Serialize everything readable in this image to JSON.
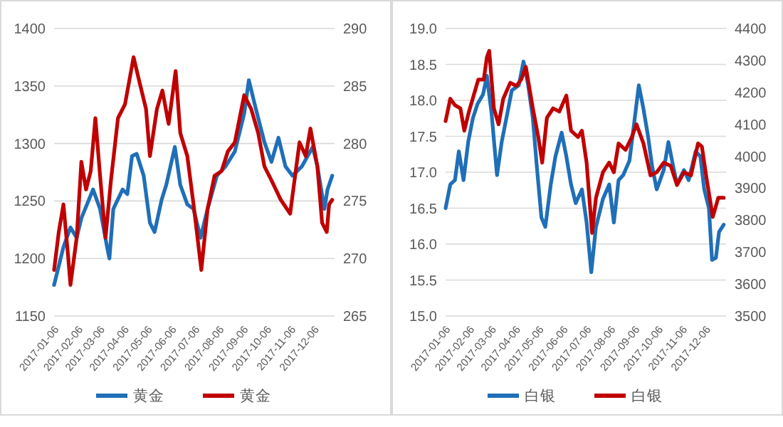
{
  "chart_data": [
    {
      "type": "line",
      "xlim": [
        "2017-01-03",
        "2017-12-29"
      ],
      "xticks": [
        "2017-01-06",
        "2017-02-06",
        "2017-03-06",
        "2017-04-06",
        "2017-05-06",
        "2017-06-06",
        "2017-07-06",
        "2017-08-06",
        "2017-09-06",
        "2017-10-06",
        "2017-11-06",
        "2017-12-06"
      ],
      "ylim": [
        1150,
        1400
      ],
      "yticks": [
        1150,
        1200,
        1250,
        1300,
        1350,
        1400
      ],
      "y2lim": [
        265,
        290
      ],
      "y2ticks": [
        265,
        270,
        275,
        280,
        285,
        290
      ],
      "grid": "y",
      "legend": "bottom",
      "series": [
        {
          "name": "黄金",
          "color": "#1f6fb8",
          "x": [
            "2017-01-03",
            "2017-01-15",
            "2017-01-24",
            "2017-02-01",
            "2017-02-07",
            "2017-02-22",
            "2017-03-03",
            "2017-03-12",
            "2017-03-15",
            "2017-03-20",
            "2017-04-01",
            "2017-04-07",
            "2017-04-13",
            "2017-04-19",
            "2017-04-28",
            "2017-05-06",
            "2017-05-12",
            "2017-05-21",
            "2017-05-27",
            "2017-06-07",
            "2017-06-14",
            "2017-06-23",
            "2017-07-01",
            "2017-07-10",
            "2017-07-19",
            "2017-07-31",
            "2017-08-11",
            "2017-08-23",
            "2017-09-04",
            "2017-09-10",
            "2017-09-19",
            "2017-09-30",
            "2017-10-09",
            "2017-10-18",
            "2017-10-27",
            "2017-11-05",
            "2017-11-17",
            "2017-12-01",
            "2017-12-07",
            "2017-12-16",
            "2017-12-20",
            "2017-12-26"
          ],
          "values": [
            1177,
            1210,
            1227,
            1218,
            1235,
            1260,
            1243,
            1210,
            1200,
            1243,
            1260,
            1256,
            1289,
            1291,
            1272,
            1231,
            1223,
            1251,
            1264,
            1297,
            1264,
            1247,
            1243,
            1218,
            1243,
            1272,
            1280,
            1293,
            1326,
            1355,
            1330,
            1301,
            1284,
            1305,
            1280,
            1272,
            1280,
            1297,
            1280,
            1243,
            1260,
            1272
          ]
        },
        {
          "name": "黄金",
          "color": "#c00000",
          "axis": "y2",
          "x": [
            "2017-01-03",
            "2017-01-09",
            "2017-01-15",
            "2017-01-21",
            "2017-01-24",
            "2017-02-01",
            "2017-02-07",
            "2017-02-13",
            "2017-02-19",
            "2017-02-25",
            "2017-03-03",
            "2017-03-10",
            "2017-03-17",
            "2017-03-26",
            "2017-04-04",
            "2017-04-15",
            "2017-04-22",
            "2017-05-01",
            "2017-05-06",
            "2017-05-15",
            "2017-05-22",
            "2017-05-30",
            "2017-06-08",
            "2017-06-14",
            "2017-06-23",
            "2017-07-01",
            "2017-07-11",
            "2017-07-19",
            "2017-07-28",
            "2017-08-06",
            "2017-08-14",
            "2017-08-23",
            "2017-09-04",
            "2017-09-13",
            "2017-09-22",
            "2017-09-30",
            "2017-10-09",
            "2017-10-21",
            "2017-11-02",
            "2017-11-14",
            "2017-11-22",
            "2017-11-28",
            "2017-12-07",
            "2017-12-13",
            "2017-12-19",
            "2017-12-22",
            "2017-12-26"
          ],
          "values": [
            269.0,
            272.3,
            274.7,
            270.2,
            267.7,
            271.8,
            278.4,
            276.0,
            277.6,
            282.2,
            277.2,
            271.8,
            276.8,
            282.2,
            283.4,
            287.5,
            285.5,
            283.0,
            278.9,
            283.0,
            284.6,
            281.7,
            286.3,
            280.9,
            278.9,
            274.7,
            269.0,
            274.3,
            277.2,
            277.6,
            279.3,
            280.1,
            284.2,
            283.0,
            280.9,
            278.0,
            276.8,
            275.1,
            273.9,
            280.1,
            278.9,
            281.3,
            278.0,
            273.1,
            272.3,
            274.7,
            275.1
          ]
        }
      ]
    },
    {
      "type": "line",
      "xlim": [
        "2017-01-03",
        "2017-12-29"
      ],
      "xticks": [
        "2017-01-06",
        "2017-02-06",
        "2017-03-06",
        "2017-04-06",
        "2017-05-06",
        "2017-06-06",
        "2017-07-06",
        "2017-08-06",
        "2017-09-06",
        "2017-10-06",
        "2017-11-06",
        "2017-12-06"
      ],
      "ylim": [
        15.0,
        19.0
      ],
      "yticks": [
        {
          "value": 15,
          "label": "15.0"
        },
        15.5,
        {
          "value": 16,
          "label": "16.0"
        },
        16.5,
        {
          "value": 17,
          "label": "17.0"
        },
        17.5,
        {
          "value": 18,
          "label": "18.0"
        },
        18.5,
        {
          "value": 19,
          "label": "19.0"
        }
      ],
      "y2lim": [
        3500,
        4400
      ],
      "y2ticks": [
        3500,
        3600,
        3700,
        3800,
        3900,
        4000,
        4100,
        4200,
        4300,
        4400
      ],
      "grid": "y",
      "legend": "bottom",
      "series": [
        {
          "name": "白银",
          "color": "#1f6fb8",
          "x": [
            "2017-01-03",
            "2017-01-09",
            "2017-01-15",
            "2017-01-20",
            "2017-01-26",
            "2017-02-01",
            "2017-02-07",
            "2017-02-13",
            "2017-02-20",
            "2017-02-25",
            "2017-03-03",
            "2017-03-10",
            "2017-03-16",
            "2017-03-22",
            "2017-03-29",
            "2017-04-07",
            "2017-04-13",
            "2017-04-19",
            "2017-04-25",
            "2017-04-30",
            "2017-05-06",
            "2017-05-11",
            "2017-05-18",
            "2017-05-24",
            "2017-06-01",
            "2017-06-07",
            "2017-06-13",
            "2017-06-19",
            "2017-06-27",
            "2017-07-03",
            "2017-07-09",
            "2017-07-15",
            "2017-07-24",
            "2017-08-01",
            "2017-08-07",
            "2017-08-13",
            "2017-08-19",
            "2017-08-27",
            "2017-09-02",
            "2017-09-08",
            "2017-09-14",
            "2017-09-20",
            "2017-09-25",
            "2017-10-01",
            "2017-10-10",
            "2017-10-16",
            "2017-10-22",
            "2017-10-27",
            "2017-11-05",
            "2017-11-11",
            "2017-11-20",
            "2017-11-26",
            "2017-12-01",
            "2017-12-07",
            "2017-12-11",
            "2017-12-16",
            "2017-12-20",
            "2017-12-26"
          ],
          "values": [
            16.5,
            16.83,
            16.89,
            17.29,
            16.89,
            17.42,
            17.75,
            17.95,
            18.08,
            18.34,
            17.82,
            16.96,
            17.42,
            17.75,
            18.14,
            18.21,
            18.54,
            18.21,
            17.75,
            17.09,
            16.37,
            16.24,
            16.83,
            17.22,
            17.55,
            17.22,
            16.83,
            16.57,
            16.76,
            16.3,
            15.61,
            16.24,
            16.63,
            16.83,
            16.3,
            16.89,
            16.96,
            17.16,
            17.68,
            18.21,
            17.88,
            17.49,
            17.09,
            16.76,
            17.03,
            17.42,
            17.09,
            16.83,
            17.03,
            16.89,
            17.29,
            17.22,
            16.76,
            16.5,
            15.78,
            15.81,
            16.17,
            16.27
          ]
        },
        {
          "name": "白银",
          "color": "#c00000",
          "axis": "y2",
          "x": [
            "2017-01-03",
            "2017-01-09",
            "2017-01-15",
            "2017-01-22",
            "2017-01-27",
            "2017-02-02",
            "2017-02-08",
            "2017-02-14",
            "2017-02-21",
            "2017-02-25",
            "2017-02-28",
            "2017-03-06",
            "2017-03-12",
            "2017-03-18",
            "2017-03-27",
            "2017-04-04",
            "2017-04-10",
            "2017-04-16",
            "2017-04-25",
            "2017-05-02",
            "2017-05-07",
            "2017-05-13",
            "2017-05-21",
            "2017-05-29",
            "2017-06-07",
            "2017-06-13",
            "2017-06-22",
            "2017-06-27",
            "2017-07-03",
            "2017-07-10",
            "2017-07-15",
            "2017-07-24",
            "2017-08-01",
            "2017-08-07",
            "2017-08-13",
            "2017-08-22",
            "2017-08-30",
            "2017-09-05",
            "2017-09-14",
            "2017-09-23",
            "2017-10-01",
            "2017-10-10",
            "2017-10-19",
            "2017-10-27",
            "2017-11-05",
            "2017-11-14",
            "2017-11-23",
            "2017-11-28",
            "2017-12-04",
            "2017-12-12",
            "2017-12-19",
            "2017-12-26"
          ],
          "values": [
            4110,
            4180,
            4160,
            4150,
            4080,
            4140,
            4190,
            4240,
            4240,
            4310,
            4330,
            4150,
            4100,
            4180,
            4230,
            4220,
            4240,
            4280,
            4150,
            4060,
            3980,
            4120,
            4150,
            4140,
            4190,
            4080,
            4060,
            4080,
            3980,
            3760,
            3870,
            3950,
            3980,
            3950,
            4040,
            4020,
            4060,
            4100,
            4040,
            3940,
            3950,
            3980,
            3970,
            3910,
            3950,
            3940,
            4040,
            4030,
            3930,
            3810,
            3870,
            3870
          ]
        }
      ]
    }
  ]
}
